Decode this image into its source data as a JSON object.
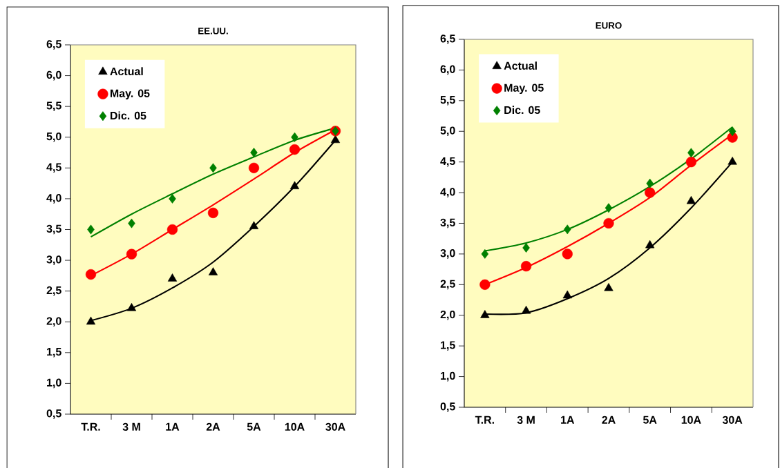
{
  "chart_data": [
    {
      "type": "scatter",
      "title": "EE.UU.",
      "categories": [
        "T.R.",
        "3 M",
        "1A",
        "2A",
        "5A",
        "10A",
        "30A"
      ],
      "ylim": [
        0.5,
        6.5
      ],
      "yticks": [
        {
          "value": 0.5,
          "label": "0,5"
        },
        {
          "value": 1.0,
          "label": "1,0"
        },
        {
          "value": 1.5,
          "label": "1,5"
        },
        {
          "value": 2.0,
          "label": "2,0"
        },
        {
          "value": 2.5,
          "label": "2,5"
        },
        {
          "value": 3.0,
          "label": "3,0"
        },
        {
          "value": 3.5,
          "label": "3,5"
        },
        {
          "value": 4.0,
          "label": "4,0"
        },
        {
          "value": 4.5,
          "label": "4,5"
        },
        {
          "value": 5.0,
          "label": "5,0"
        },
        {
          "value": 5.5,
          "label": "5,5"
        },
        {
          "value": 6.0,
          "label": "6,0"
        },
        {
          "value": 6.5,
          "label": "6,5"
        }
      ],
      "legend": "top left",
      "series": [
        {
          "name": "Actual",
          "marker": "triangle",
          "color": "#000000",
          "values": [
            2.0,
            2.22,
            2.7,
            2.8,
            3.55,
            4.2,
            4.95
          ]
        },
        {
          "name": "May. 05",
          "marker": "circle",
          "color": "#ff0000",
          "values": [
            2.77,
            3.1,
            3.5,
            3.77,
            4.5,
            4.8,
            5.1
          ]
        },
        {
          "name": "Dic. 05",
          "marker": "diamond",
          "color": "#008000",
          "values": [
            3.5,
            3.6,
            4.0,
            4.5,
            4.75,
            5.0,
            5.1
          ]
        },
        {
          "type": "line",
          "marker": "none",
          "color": "#000000",
          "values": [
            2.02,
            2.22,
            2.55,
            2.97,
            3.55,
            4.2,
            4.95
          ]
        },
        {
          "type": "line",
          "marker": "none",
          "color": "#ff0000",
          "values": [
            2.75,
            3.1,
            3.5,
            3.9,
            4.32,
            4.75,
            5.12
          ]
        },
        {
          "type": "line",
          "marker": "none",
          "color": "#008000",
          "values": [
            3.38,
            3.75,
            4.08,
            4.4,
            4.68,
            4.95,
            5.15
          ]
        }
      ]
    },
    {
      "type": "scatter",
      "title": "EURO",
      "categories": [
        "T.R.",
        "3 M",
        "1A",
        "2A",
        "5A",
        "10A",
        "30A"
      ],
      "ylim": [
        0.5,
        6.5
      ],
      "yticks": [
        {
          "value": 0.5,
          "label": "0,5"
        },
        {
          "value": 1.0,
          "label": "1,0"
        },
        {
          "value": 1.5,
          "label": "1,5"
        },
        {
          "value": 2.0,
          "label": "2,0"
        },
        {
          "value": 2.5,
          "label": "2,5"
        },
        {
          "value": 3.0,
          "label": "3,0"
        },
        {
          "value": 3.5,
          "label": "3,5"
        },
        {
          "value": 4.0,
          "label": "4,0"
        },
        {
          "value": 4.5,
          "label": "4,5"
        },
        {
          "value": 5.0,
          "label": "5,0"
        },
        {
          "value": 5.5,
          "label": "5,5"
        },
        {
          "value": 6.0,
          "label": "6,0"
        },
        {
          "value": 6.5,
          "label": "6,5"
        }
      ],
      "legend": "top left",
      "series": [
        {
          "name": "Actual",
          "marker": "triangle",
          "color": "#000000",
          "values": [
            2.0,
            2.07,
            2.32,
            2.44,
            3.14,
            3.86,
            4.5
          ]
        },
        {
          "name": "May. 05",
          "marker": "circle",
          "color": "#ff0000",
          "values": [
            2.5,
            2.8,
            3.0,
            3.5,
            4.0,
            4.5,
            4.9
          ]
        },
        {
          "name": "Dic. 05",
          "marker": "diamond",
          "color": "#008000",
          "values": [
            3.0,
            3.1,
            3.4,
            3.75,
            4.15,
            4.65,
            5.0
          ]
        },
        {
          "type": "line",
          "marker": "none",
          "color": "#000000",
          "values": [
            2.02,
            2.04,
            2.27,
            2.6,
            3.1,
            3.75,
            4.5
          ]
        },
        {
          "type": "line",
          "marker": "none",
          "color": "#ff0000",
          "values": [
            2.5,
            2.78,
            3.12,
            3.5,
            3.92,
            4.45,
            4.95
          ]
        },
        {
          "type": "line",
          "marker": "none",
          "color": "#008000",
          "values": [
            3.05,
            3.18,
            3.4,
            3.72,
            4.1,
            4.55,
            5.07
          ]
        }
      ]
    }
  ]
}
